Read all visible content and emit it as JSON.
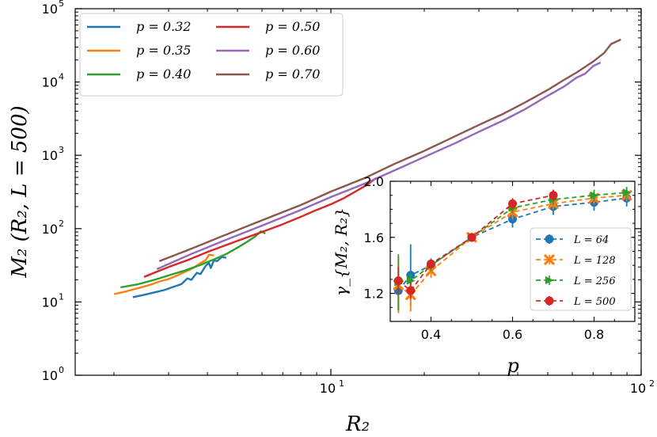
{
  "chart_data": [
    {
      "type": "line",
      "xscale": "log",
      "yscale": "log",
      "xlabel": "R₂",
      "ylabel": "M₂ (R₂, L = 500)",
      "xlim": [
        1.5,
        100
      ],
      "ylim": [
        1,
        100000
      ],
      "x_major_ticks": [
        {
          "value": 10,
          "label": "10",
          "exp": "1"
        },
        {
          "value": 100,
          "label": "10",
          "exp": "2"
        }
      ],
      "y_major_ticks": [
        {
          "value": 1,
          "label": "10",
          "exp": "0"
        },
        {
          "value": 10,
          "label": "10",
          "exp": "1"
        },
        {
          "value": 100,
          "label": "10",
          "exp": "2"
        },
        {
          "value": 1000,
          "label": "10",
          "exp": "3"
        },
        {
          "value": 10000,
          "label": "10",
          "exp": "4"
        },
        {
          "value": 100000,
          "label": "10",
          "exp": "5"
        }
      ],
      "legend_location": "top-left",
      "series": [
        {
          "name": "p = 0.32",
          "color": "#1f77b4",
          "points": [
            [
              2.3,
              11.6
            ],
            [
              2.5,
              12.5
            ],
            [
              2.7,
              13.5
            ],
            [
              2.9,
              14.5
            ],
            [
              3.1,
              16.0
            ],
            [
              3.3,
              17.5
            ],
            [
              3.45,
              21.0
            ],
            [
              3.55,
              20.0
            ],
            [
              3.7,
              25.0
            ],
            [
              3.8,
              24.0
            ],
            [
              3.95,
              31.0
            ],
            [
              4.05,
              34.0
            ],
            [
              4.1,
              29.0
            ],
            [
              4.2,
              37.0
            ],
            [
              4.3,
              36.0
            ],
            [
              4.45,
              41.0
            ],
            [
              4.6,
              40.0
            ]
          ]
        },
        {
          "name": "p = 0.35",
          "color": "#ff7f0e",
          "points": [
            [
              2.0,
              12.8
            ],
            [
              2.2,
              14.0
            ],
            [
              2.4,
              15.5
            ],
            [
              2.6,
              17.0
            ],
            [
              2.8,
              19.0
            ],
            [
              3.0,
              20.5
            ],
            [
              3.2,
              23.0
            ],
            [
              3.4,
              26.0
            ],
            [
              3.6,
              29.0
            ],
            [
              3.8,
              34.0
            ],
            [
              3.95,
              37.0
            ],
            [
              4.05,
              44.0
            ],
            [
              4.2,
              43.0
            ]
          ]
        },
        {
          "name": "p = 0.40",
          "color": "#2ca02c",
          "points": [
            [
              2.1,
              15.8
            ],
            [
              2.4,
              17.5
            ],
            [
              2.7,
              20.0
            ],
            [
              3.0,
              23.0
            ],
            [
              3.4,
              27.0
            ],
            [
              3.8,
              32.0
            ],
            [
              4.2,
              38.0
            ],
            [
              4.6,
              45.0
            ],
            [
              5.0,
              55.0
            ],
            [
              5.4,
              67.0
            ],
            [
              5.7,
              78.0
            ],
            [
              5.95,
              92.0
            ],
            [
              6.15,
              86.0
            ]
          ]
        },
        {
          "name": "p = 0.50",
          "color": "#d62728",
          "points": [
            [
              2.5,
              22.0
            ],
            [
              3.0,
              30.0
            ],
            [
              3.5,
              38.0
            ],
            [
              4.0,
              48.0
            ],
            [
              5.0,
              68.0
            ],
            [
              6.0,
              90.0
            ],
            [
              7.0,
              115.0
            ],
            [
              8.0,
              145.0
            ],
            [
              9.0,
              180.0
            ],
            [
              10.0,
              215.0
            ],
            [
              11.0,
              260.0
            ],
            [
              12.0,
              320.0
            ],
            [
              13.0,
              390.0
            ],
            [
              14.0,
              490.0
            ]
          ]
        },
        {
          "name": "p = 0.60",
          "color": "#9467bd",
          "points": [
            [
              2.75,
              28.0
            ],
            [
              3.5,
              44.0
            ],
            [
              4.5,
              68.0
            ],
            [
              6.0,
              110.0
            ],
            [
              8.0,
              180.0
            ],
            [
              10.0,
              270.0
            ],
            [
              13.0,
              420.0
            ],
            [
              16.0,
              620.0
            ],
            [
              20.0,
              950.0
            ],
            [
              25.0,
              1450.0
            ],
            [
              30.0,
              2100.0
            ],
            [
              36.0,
              3000.0
            ],
            [
              42.0,
              4200.0
            ],
            [
              50.0,
              6500.0
            ],
            [
              56.0,
              8500.0
            ],
            [
              62.0,
              11500.0
            ],
            [
              66.0,
              13000.0
            ],
            [
              70.0,
              16500.0
            ],
            [
              74.0,
              18500.0
            ]
          ]
        },
        {
          "name": "p = 0.70",
          "color": "#8c564b",
          "points": [
            [
              2.8,
              36.0
            ],
            [
              3.5,
              52.0
            ],
            [
              4.5,
              80.0
            ],
            [
              6.0,
              130.0
            ],
            [
              8.0,
              210.0
            ],
            [
              10.0,
              320.0
            ],
            [
              13.0,
              500.0
            ],
            [
              16.0,
              760.0
            ],
            [
              20.0,
              1150.0
            ],
            [
              25.0,
              1800.0
            ],
            [
              30.0,
              2600.0
            ],
            [
              36.0,
              3700.0
            ],
            [
              42.0,
              5200.0
            ],
            [
              50.0,
              7800.0
            ],
            [
              56.0,
              10500.0
            ],
            [
              62.0,
              13500.0
            ],
            [
              70.0,
              19000.0
            ],
            [
              76.0,
              25000.0
            ],
            [
              80.0,
              33000.0
            ],
            [
              86.0,
              38000.0
            ]
          ]
        }
      ]
    },
    {
      "type": "line",
      "xlabel": "p",
      "ylabel": "γ_{M₂, R₂}",
      "xlim": [
        0.3,
        0.9
      ],
      "ylim": [
        1.0,
        2.0
      ],
      "x_tick_labels": [
        {
          "value": 0.4,
          "label": "0.4"
        },
        {
          "value": 0.6,
          "label": "0.6"
        },
        {
          "value": 0.8,
          "label": "0.8"
        }
      ],
      "y_tick_labels": [
        {
          "value": 1.2,
          "label": "1.2"
        },
        {
          "value": 1.6,
          "label": "1.6"
        },
        {
          "value": 2.0,
          "label": "2.0"
        }
      ],
      "legend_location": "lower-right",
      "series": [
        {
          "name": "L = 64",
          "color": "#1f77b4",
          "marker": "circle",
          "x": [
            0.32,
            0.35,
            0.4,
            0.5,
            0.6,
            0.7,
            0.8,
            0.88
          ],
          "y": [
            1.22,
            1.33,
            1.4,
            1.6,
            1.73,
            1.82,
            1.85,
            1.88
          ],
          "err": [
            0.16,
            0.22,
            0.05,
            0.03,
            0.06,
            0.06,
            0.06,
            0.06
          ]
        },
        {
          "name": "L = 128",
          "color": "#ff7f0e",
          "marker": "x",
          "x": [
            0.32,
            0.35,
            0.4,
            0.5,
            0.6,
            0.7,
            0.8,
            0.88
          ],
          "y": [
            1.26,
            1.19,
            1.36,
            1.6,
            1.78,
            1.84,
            1.88,
            1.9
          ],
          "err": [
            0.2,
            0.12,
            0.05,
            0.03,
            0.05,
            0.04,
            0.04,
            0.04
          ]
        },
        {
          "name": "L = 256",
          "color": "#2ca02c",
          "marker": "triangle-right",
          "x": [
            0.32,
            0.35,
            0.4,
            0.5,
            0.6,
            0.7,
            0.8,
            0.88
          ],
          "y": [
            1.28,
            1.29,
            1.4,
            1.6,
            1.81,
            1.87,
            1.9,
            1.92
          ],
          "err": [
            0.2,
            0.05,
            0.04,
            0.03,
            0.04,
            0.04,
            0.04,
            0.04
          ]
        },
        {
          "name": "L = 500",
          "color": "#d62728",
          "marker": "circle",
          "x": [
            0.32,
            0.35,
            0.4,
            0.5,
            0.6,
            0.7
          ],
          "y": [
            1.29,
            1.22,
            1.41,
            1.6,
            1.84,
            1.9
          ],
          "err": [
            0.1,
            0.06,
            0.03,
            0.03,
            0.04,
            0.04
          ]
        }
      ]
    }
  ]
}
